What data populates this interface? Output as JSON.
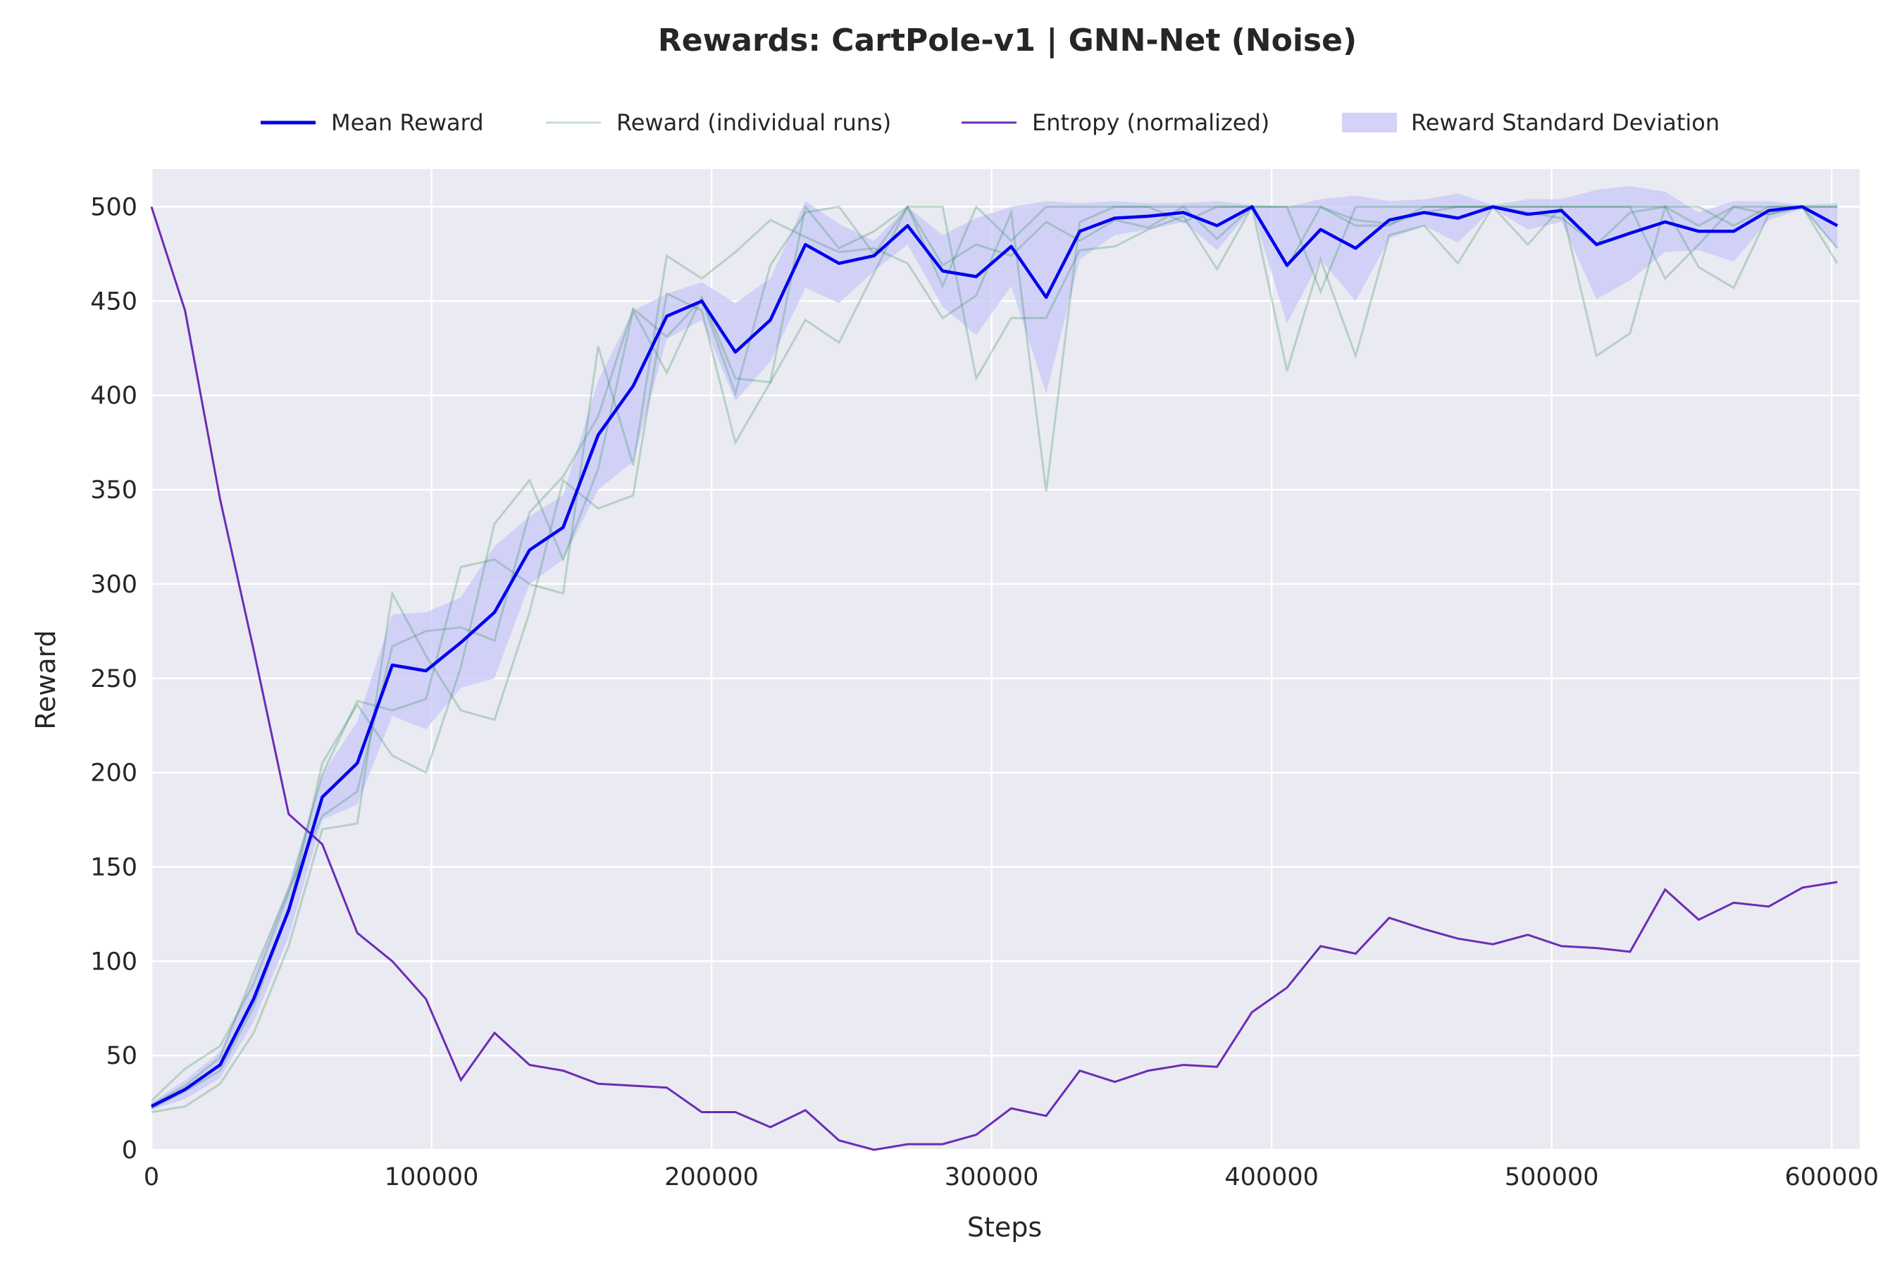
{
  "chart_data": {
    "type": "line",
    "title": "Rewards: CartPole-v1 | GNN-Net (Noise)",
    "xlabel": "Steps",
    "ylabel": "Reward",
    "xlim": [
      0,
      610000
    ],
    "ylim": [
      0,
      520
    ],
    "xticks": [
      0,
      100000,
      200000,
      300000,
      400000,
      500000,
      600000
    ],
    "yticks": [
      0,
      50,
      100,
      150,
      200,
      250,
      300,
      350,
      400,
      450,
      500
    ],
    "grid": true,
    "legend_position": "top",
    "legend": [
      "Mean Reward",
      "Reward (individual runs)",
      "Entropy (normalized)",
      "Reward Standard Deviation"
    ],
    "colors": {
      "mean": "#0000ee",
      "runs": "#2e8b57",
      "entropy": "#6a2db5",
      "std": "#c8c8f8",
      "plot_bg": "#eaeaf2",
      "grid": "#ffffff"
    },
    "x": [
      0,
      12000,
      24500,
      36500,
      49000,
      61000,
      73500,
      86000,
      98000,
      110500,
      122500,
      135000,
      147000,
      159500,
      172000,
      184000,
      196500,
      208500,
      221000,
      233500,
      245500,
      258000,
      270000,
      282500,
      294500,
      307000,
      319500,
      331500,
      344000,
      356000,
      368500,
      380500,
      393000,
      405500,
      417500,
      430000,
      442000,
      454500,
      466500,
      479000,
      491500,
      503500,
      516000,
      528000,
      540500,
      552500,
      565000,
      577500,
      589500,
      602000
    ],
    "series": [
      {
        "name": "Mean Reward",
        "values": [
          23,
          32,
          45,
          80,
          127,
          187,
          205,
          257,
          254,
          269,
          285,
          318,
          330,
          379,
          405,
          442,
          450,
          423,
          440,
          480,
          470,
          474,
          490,
          466,
          463,
          479,
          452,
          487,
          494,
          495,
          497,
          490,
          500,
          469,
          488,
          478,
          493,
          497,
          494,
          500,
          496,
          498,
          480,
          486,
          492,
          487,
          487,
          498,
          500,
          490
        ]
      },
      {
        "name": "Entropy (normalized)",
        "values": [
          500,
          445,
          345,
          265,
          178,
          162,
          115,
          100,
          80,
          37,
          62,
          45,
          42,
          35,
          34,
          33,
          20,
          20,
          12,
          21,
          5,
          0,
          3,
          3,
          8,
          22,
          18,
          42,
          36,
          42,
          45,
          44,
          73,
          86,
          108,
          104,
          123,
          117,
          112,
          109,
          114,
          108,
          107,
          105,
          138,
          122,
          131,
          129,
          139,
          142
        ]
      }
    ],
    "std_band": {
      "name": "Reward Standard Deviation",
      "lower": [
        21,
        27,
        38,
        68,
        113,
        175,
        183,
        230,
        223,
        245,
        250,
        300,
        313,
        350,
        365,
        430,
        440,
        397,
        418,
        457,
        449,
        466,
        480,
        447,
        432,
        458,
        401,
        472,
        485,
        488,
        492,
        477,
        499,
        438,
        472,
        450,
        483,
        490,
        481,
        499,
        488,
        492,
        451,
        461,
        476,
        477,
        471,
        493,
        499,
        478
      ],
      "upper": [
        25,
        37,
        52,
        92,
        141,
        199,
        227,
        284,
        285,
        293,
        320,
        336,
        347,
        408,
        445,
        454,
        460,
        449,
        462,
        503,
        491,
        482,
        500,
        485,
        494,
        500,
        503,
        502,
        503,
        502,
        502,
        503,
        501,
        500,
        504,
        506,
        503,
        504,
        507,
        501,
        504,
        504,
        509,
        511,
        508,
        497,
        503,
        503,
        501,
        502
      ]
    },
    "individual_runs": [
      {
        "values": [
          20,
          23,
          35,
          62,
          108,
          170,
          173,
          295,
          262,
          233,
          228,
          285,
          355,
          340,
          347,
          454,
          445,
          375,
          407,
          440,
          428,
          465,
          500,
          500,
          409,
          441,
          441,
          477,
          479,
          488,
          495,
          467,
          500,
          413,
          472,
          421,
          485,
          490,
          470,
          500,
          480,
          500,
          421,
          433,
          500,
          468,
          457,
          496,
          500,
          470
        ]
      },
      {
        "values": [
          26,
          43,
          55,
          88,
          136,
          199,
          238,
          233,
          239,
          309,
          313,
          300,
          295,
          426,
          363,
          474,
          462,
          476,
          493,
          484,
          476,
          478,
          470,
          441,
          453,
          497,
          349,
          492,
          500,
          500,
          492,
          500,
          500,
          500,
          455,
          500,
          500,
          500,
          500,
          500,
          500,
          500,
          500,
          500,
          462,
          480,
          500,
          500,
          500,
          500
        ]
      },
      {
        "values": [
          22,
          31,
          42,
          76,
          127,
          205,
          236,
          209,
          200,
          256,
          332,
          355,
          313,
          361,
          445,
          412,
          452,
          409,
          407,
          500,
          478,
          487,
          500,
          458,
          500,
          482,
          500,
          500,
          500,
          500,
          500,
          500,
          500,
          500,
          500,
          490,
          490,
          500,
          500,
          500,
          500,
          500,
          500,
          500,
          500,
          500,
          490,
          500,
          500,
          500
        ]
      },
      {
        "values": [
          24,
          34,
          49,
          94,
          138,
          177,
          190,
          267,
          275,
          277,
          270,
          338,
          357,
          389,
          446,
          431,
          451,
          401,
          469,
          497,
          500,
          475,
          500,
          469,
          480,
          474,
          492,
          482,
          493,
          489,
          500,
          483,
          500,
          468,
          500,
          493,
          491,
          497,
          500,
          500,
          497,
          494,
          480,
          497,
          500,
          490,
          500,
          496,
          500,
          478
        ]
      }
    ]
  }
}
